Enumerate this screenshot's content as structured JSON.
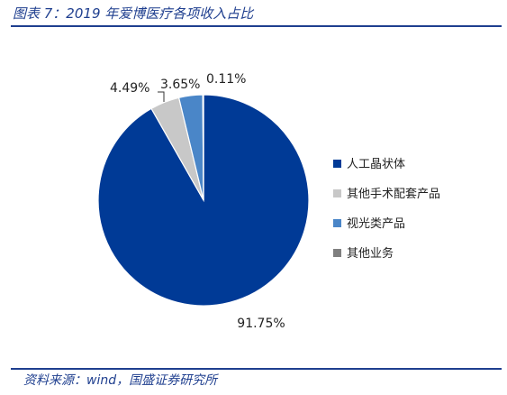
{
  "title": "图表 7：2019 年爱博医疗各项收入占比",
  "source": "资料来源：wind，国盛证券研究所",
  "chart_data": {
    "type": "pie",
    "title": "图表 7：2019 年爱博医疗各项收入占比",
    "slices": [
      {
        "name": "人工晶状体",
        "value": 91.75,
        "label": "91.75%",
        "color": "#003a96"
      },
      {
        "name": "其他手术配套产品",
        "value": 4.49,
        "label": "4.49%",
        "color": "#c8c8c8"
      },
      {
        "name": "视光类产品",
        "value": 3.65,
        "label": "3.65%",
        "color": "#4a86c8"
      },
      {
        "name": "其他业务",
        "value": 0.11,
        "label": "0.11%",
        "color": "#7f7f7f"
      }
    ],
    "legend_position": "right"
  }
}
